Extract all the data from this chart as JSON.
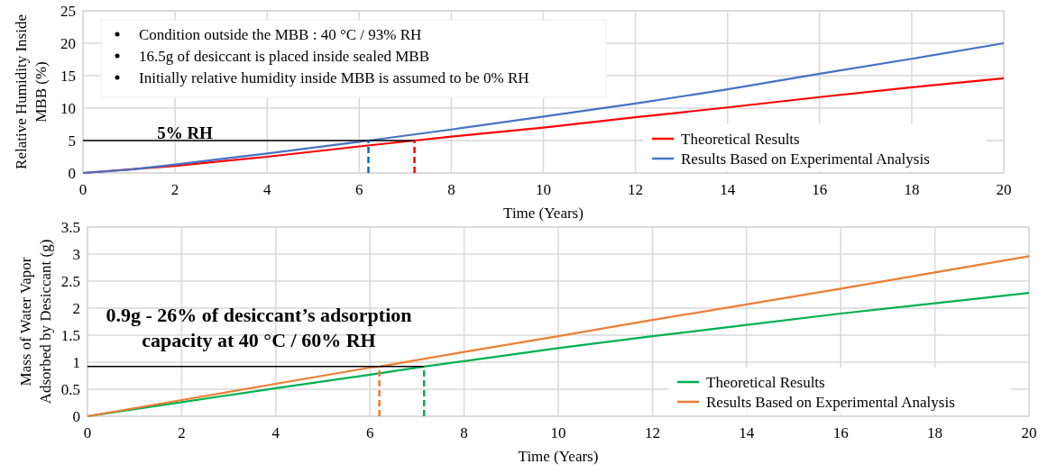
{
  "chart_data": [
    {
      "type": "line",
      "xlabel": "Time (Years)",
      "ylabel": "Relative Humidity Inside MBB (%)",
      "xlim": [
        0,
        20
      ],
      "xticks": [
        0,
        2,
        4,
        6,
        8,
        10,
        12,
        14,
        16,
        18,
        20
      ],
      "ylim": [
        0,
        25
      ],
      "yticks": [
        0,
        5,
        10,
        15,
        20,
        25
      ],
      "grid": true,
      "legend": "bottom right",
      "marker": "none",
      "annotations": [
        "Condition outside the MBB : 40 °C / 93% RH",
        "16.5g of desiccant is placed inside sealed MBB",
        "Initially relative humidity inside MBB is assumed to be 0% RH",
        "5% RH"
      ],
      "series": [
        {
          "name": "Theoretical Results",
          "color": "#ff0000",
          "x": [
            0,
            2,
            4,
            6,
            7.2,
            8,
            10,
            12,
            14,
            16,
            18,
            20
          ],
          "values": [
            0,
            1.1,
            2.5,
            4.1,
            5,
            5.6,
            7,
            8.6,
            10.1,
            11.7,
            13.2,
            14.6
          ]
        },
        {
          "name": "Results Based on Experimental Analysis",
          "color": "#4472c4",
          "x": [
            0,
            1,
            2,
            4,
            6,
            6.2,
            8,
            10,
            12,
            14,
            16,
            18,
            20
          ],
          "values": [
            0,
            0.5,
            1.3,
            3,
            4.8,
            5,
            6.7,
            8.7,
            10.7,
            12.9,
            15.3,
            17.6,
            20
          ]
        },
        {
          "color": "#000000",
          "x": [
            0,
            7.2
          ],
          "values": [
            5,
            5
          ],
          "line_style": "solid"
        },
        {
          "color": "#0070c0",
          "x": [
            6.2,
            6.2
          ],
          "values": [
            0,
            5
          ],
          "line_style": "dashed"
        },
        {
          "color": "#ff0000",
          "x": [
            7.2,
            7.2
          ],
          "values": [
            0,
            5
          ],
          "line_style": "dashed"
        }
      ]
    },
    {
      "type": "line",
      "xlabel": "Time (Years)",
      "ylabel": "Mass of  Water Vapor Adsorbed by Desiccant (g)",
      "xlim": [
        0,
        20
      ],
      "xticks": [
        0,
        2,
        4,
        6,
        8,
        10,
        12,
        14,
        16,
        18,
        20
      ],
      "ylim": [
        0,
        3.5
      ],
      "yticks": [
        0,
        0.5,
        1,
        1.5,
        2,
        2.5,
        3,
        3.5
      ],
      "grid": true,
      "legend": "bottom right",
      "marker": "none",
      "annotations": [
        "0.9g - 26% of desiccant’s adsorption capacity at 40 °C / 60% RH"
      ],
      "series": [
        {
          "name": "Theoretical Results",
          "color": "#00b050",
          "x": [
            0,
            2,
            4,
            6,
            7.15,
            8,
            10,
            12,
            14,
            16,
            18,
            20
          ],
          "values": [
            0,
            0.26,
            0.52,
            0.77,
            0.92,
            1.02,
            1.26,
            1.48,
            1.69,
            1.9,
            2.09,
            2.28
          ]
        },
        {
          "name": "Results Based on Experimental Analysis",
          "color": "#ed7d31",
          "x": [
            0,
            2,
            4,
            6,
            6.2,
            8,
            10,
            12,
            14,
            16,
            18,
            20
          ],
          "values": [
            0,
            0.3,
            0.6,
            0.9,
            0.92,
            1.19,
            1.48,
            1.78,
            2.07,
            2.36,
            2.66,
            2.96
          ]
        },
        {
          "color": "#000000",
          "x": [
            0,
            7.15
          ],
          "values": [
            0.92,
            0.92
          ],
          "line_style": "solid"
        },
        {
          "color": "#ed7d31",
          "x": [
            6.2,
            6.2
          ],
          "values": [
            0,
            0.92
          ],
          "line_style": "dashed"
        },
        {
          "color": "#00b050",
          "x": [
            7.15,
            7.15
          ],
          "values": [
            0,
            0.92
          ],
          "line_style": "dashed"
        }
      ]
    }
  ]
}
